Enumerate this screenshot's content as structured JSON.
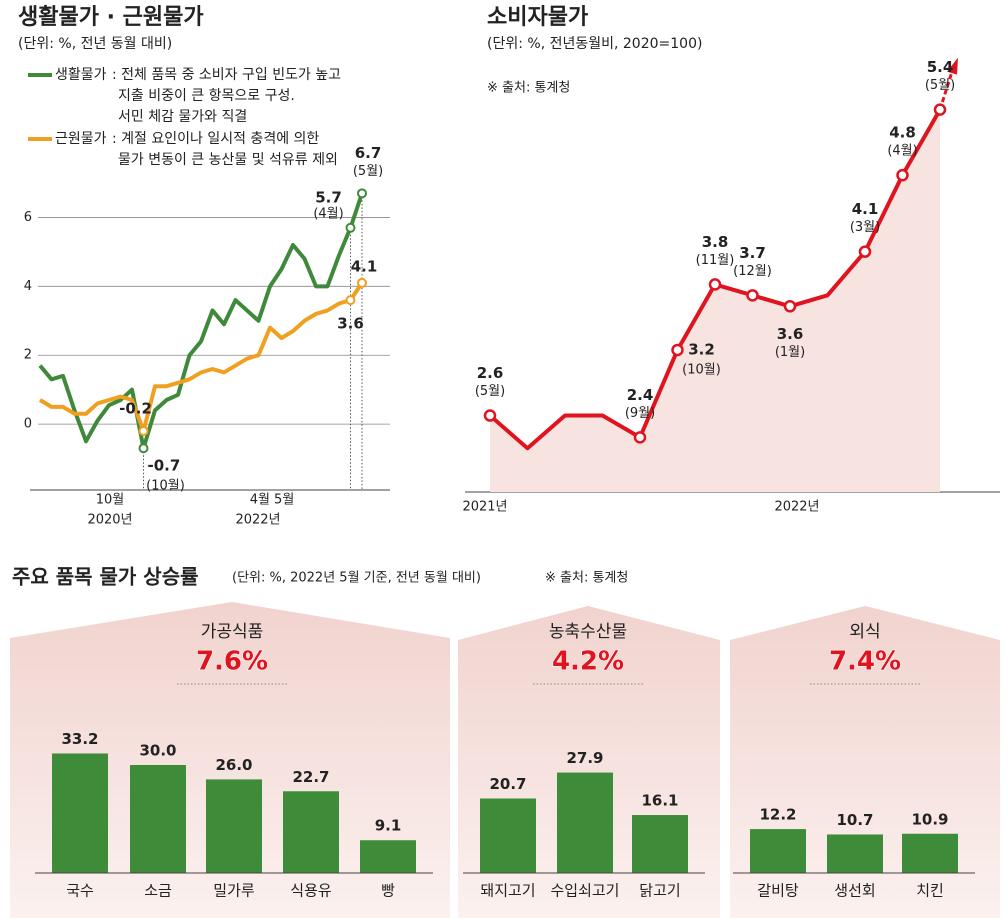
{
  "chart_data": [
    {
      "type": "line",
      "title": "생활물가 · 근원물가",
      "subtitle": "(단위: %, 전년 동월 대비)",
      "x_labels": [
        "10월",
        "2020년",
        "4월 5월",
        "2022년"
      ],
      "ylim": [
        -2,
        7
      ],
      "yticks": [
        0,
        2,
        4,
        6
      ],
      "grid": true,
      "series": [
        {
          "name": "생활물가",
          "color": "#3f8a3a",
          "description": [
            ": 전체 품목 중 소비자 구입 빈도가 높고",
            "지출 비중이 큰 항목으로 구성.",
            "서민 체감 물가와 직결"
          ],
          "values": [
            1.7,
            1.3,
            1.4,
            0.4,
            -0.5,
            0.1,
            0.55,
            0.7,
            1.0,
            -0.7,
            0.4,
            0.7,
            0.85,
            2.0,
            2.4,
            3.3,
            2.9,
            3.6,
            3.3,
            3.0,
            4.0,
            4.5,
            5.2,
            4.8,
            4.0,
            4.0,
            4.9,
            5.7,
            6.7
          ],
          "value_labels": [
            null,
            null,
            null,
            null,
            null,
            null,
            null,
            null,
            null,
            "-0.7",
            null,
            null,
            null,
            null,
            null,
            null,
            null,
            null,
            null,
            null,
            null,
            null,
            null,
            null,
            null,
            null,
            null,
            "5.7",
            "6.7"
          ],
          "notes": [
            null,
            null,
            null,
            null,
            null,
            null,
            null,
            null,
            null,
            "(10월)",
            null,
            null,
            null,
            null,
            null,
            null,
            null,
            null,
            null,
            null,
            null,
            null,
            null,
            null,
            null,
            null,
            null,
            "(4월)",
            "(5월)"
          ]
        },
        {
          "name": "근원물가",
          "color": "#f0a020",
          "description": [
            ": 계절 요인이나 일시적 충격에 의한",
            "물가 변동이 큰 농산물 및 석유류 제외"
          ],
          "values": [
            0.7,
            0.5,
            0.5,
            0.3,
            0.3,
            0.6,
            0.7,
            0.8,
            0.7,
            -0.2,
            1.1,
            1.1,
            1.2,
            1.3,
            1.5,
            1.6,
            1.5,
            1.7,
            1.9,
            2.0,
            2.8,
            2.5,
            2.7,
            3.0,
            3.2,
            3.3,
            3.5,
            3.6,
            4.1
          ],
          "value_labels": [
            null,
            null,
            null,
            null,
            null,
            null,
            null,
            null,
            null,
            "-0.2",
            null,
            null,
            null,
            null,
            null,
            null,
            null,
            null,
            null,
            null,
            null,
            null,
            null,
            null,
            null,
            null,
            null,
            "3.6",
            "4.1"
          ]
        }
      ]
    },
    {
      "type": "line",
      "title": "소비자물가",
      "subtitle": "(단위: %, 전년동월비, 2020=100)",
      "source": "※ 출처: 통계청",
      "x_labels": [
        "2021년",
        "2022년"
      ],
      "ylim": [
        1.9,
        5.9
      ],
      "series": [
        {
          "color": "#e0141e",
          "values": [
            2.6,
            2.3,
            2.6,
            2.6,
            2.4,
            3.2,
            3.8,
            3.7,
            3.6,
            3.7,
            4.1,
            4.8,
            5.4
          ],
          "value_labels": [
            "2.6",
            null,
            null,
            null,
            "2.4",
            "3.2",
            "3.8",
            "3.7",
            "3.6",
            null,
            "4.1",
            "4.8",
            "5.4"
          ],
          "notes": [
            "(5월)",
            null,
            null,
            null,
            "(9월)",
            "(10월)",
            "(11월)",
            "(12월)",
            "(1월)",
            null,
            "(3월)",
            "(4월)",
            "(5월)"
          ]
        }
      ]
    },
    {
      "type": "bar",
      "title": "주요 품목 물가 상승률",
      "subtitle": "(단위: %, 2022년 5월 기준, 전년 동월 대비)",
      "source": "※ 출처: 통계청",
      "ylim": [
        0,
        40
      ],
      "color": "#3e8c3a",
      "groups": [
        {
          "name": "가공식품",
          "rate": 7.6,
          "rate_label": "7.6%",
          "categories": [
            "국수",
            "소금",
            "밀가루",
            "식용유",
            "빵"
          ],
          "values": [
            33.2,
            30.0,
            26.0,
            22.7,
            9.1
          ],
          "value_labels": [
            "33.2",
            "30.0",
            "26.0",
            "22.7",
            "9.1"
          ]
        },
        {
          "name": "농축수산물",
          "rate": 4.2,
          "rate_label": "4.2%",
          "categories": [
            "돼지고기",
            "수입쇠고기",
            "닭고기"
          ],
          "values": [
            20.7,
            27.9,
            16.1
          ],
          "value_labels": [
            "20.7",
            "27.9",
            "16.1"
          ]
        },
        {
          "name": "외식",
          "rate": 7.4,
          "rate_label": "7.4%",
          "categories": [
            "갈비탕",
            "생선회",
            "치킨"
          ],
          "values": [
            12.2,
            10.7,
            10.9
          ],
          "value_labels": [
            "12.2",
            "10.7",
            "10.9"
          ]
        }
      ]
    }
  ]
}
